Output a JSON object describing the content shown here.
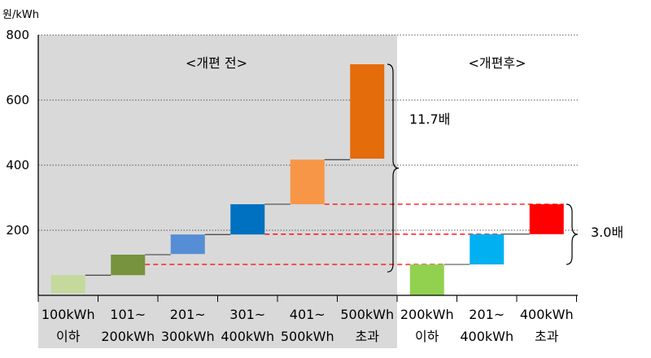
{
  "chart_data": {
    "type": "bar",
    "subtype": "floating-step",
    "ylabel": "원/kWh",
    "ylim": [
      0,
      800
    ],
    "yticks": [
      "800",
      "600",
      "400",
      "200"
    ],
    "ytick_values": [
      800,
      600,
      400,
      200
    ],
    "grid": "dotted horizontal",
    "periods": [
      {
        "label": "<개편 전>",
        "shaded": true,
        "shade_color": "#d9d9d9"
      },
      {
        "label": "<개편후>",
        "shaded": false
      }
    ],
    "categories": [
      {
        "line1": "100kWh",
        "line2": "이하"
      },
      {
        "line1": "101~",
        "line2": "200kWh"
      },
      {
        "line1": "201~",
        "line2": "300kWh"
      },
      {
        "line1": "301~",
        "line2": "400kWh"
      },
      {
        "line1": "401~",
        "line2": "500kWh"
      },
      {
        "line1": "500kWh",
        "line2": "초과"
      },
      {
        "line1": "200kWh",
        "line2": "이하"
      },
      {
        "line1": "201~",
        "line2": "400kWh"
      },
      {
        "line1": "400kWh",
        "line2": "초과"
      }
    ],
    "bars": [
      {
        "low": 7,
        "high": 62,
        "color": "#c4d99b",
        "period": 0
      },
      {
        "low": 62,
        "high": 125,
        "color": "#77933c",
        "period": 0
      },
      {
        "low": 127,
        "high": 187,
        "color": "#558ed5",
        "period": 0
      },
      {
        "low": 187,
        "high": 280,
        "color": "#0070c0",
        "period": 0
      },
      {
        "low": 280,
        "high": 417,
        "color": "#f79646",
        "period": 0
      },
      {
        "low": 420,
        "high": 710,
        "color": "#e46c0a",
        "period": 0
      },
      {
        "low": 0,
        "high": 95,
        "color": "#92d050",
        "period": 1
      },
      {
        "low": 95,
        "high": 188,
        "color": "#00b0f0",
        "period": 1
      },
      {
        "low": 188,
        "high": 280,
        "color": "#ff0000",
        "period": 1
      }
    ],
    "ratios": [
      {
        "label": "11.7배",
        "period": 0
      },
      {
        "label": "3.0배",
        "period": 1
      }
    ],
    "reference_lines": [
      95,
      188,
      280
    ],
    "reference_color": "#ff0000"
  }
}
